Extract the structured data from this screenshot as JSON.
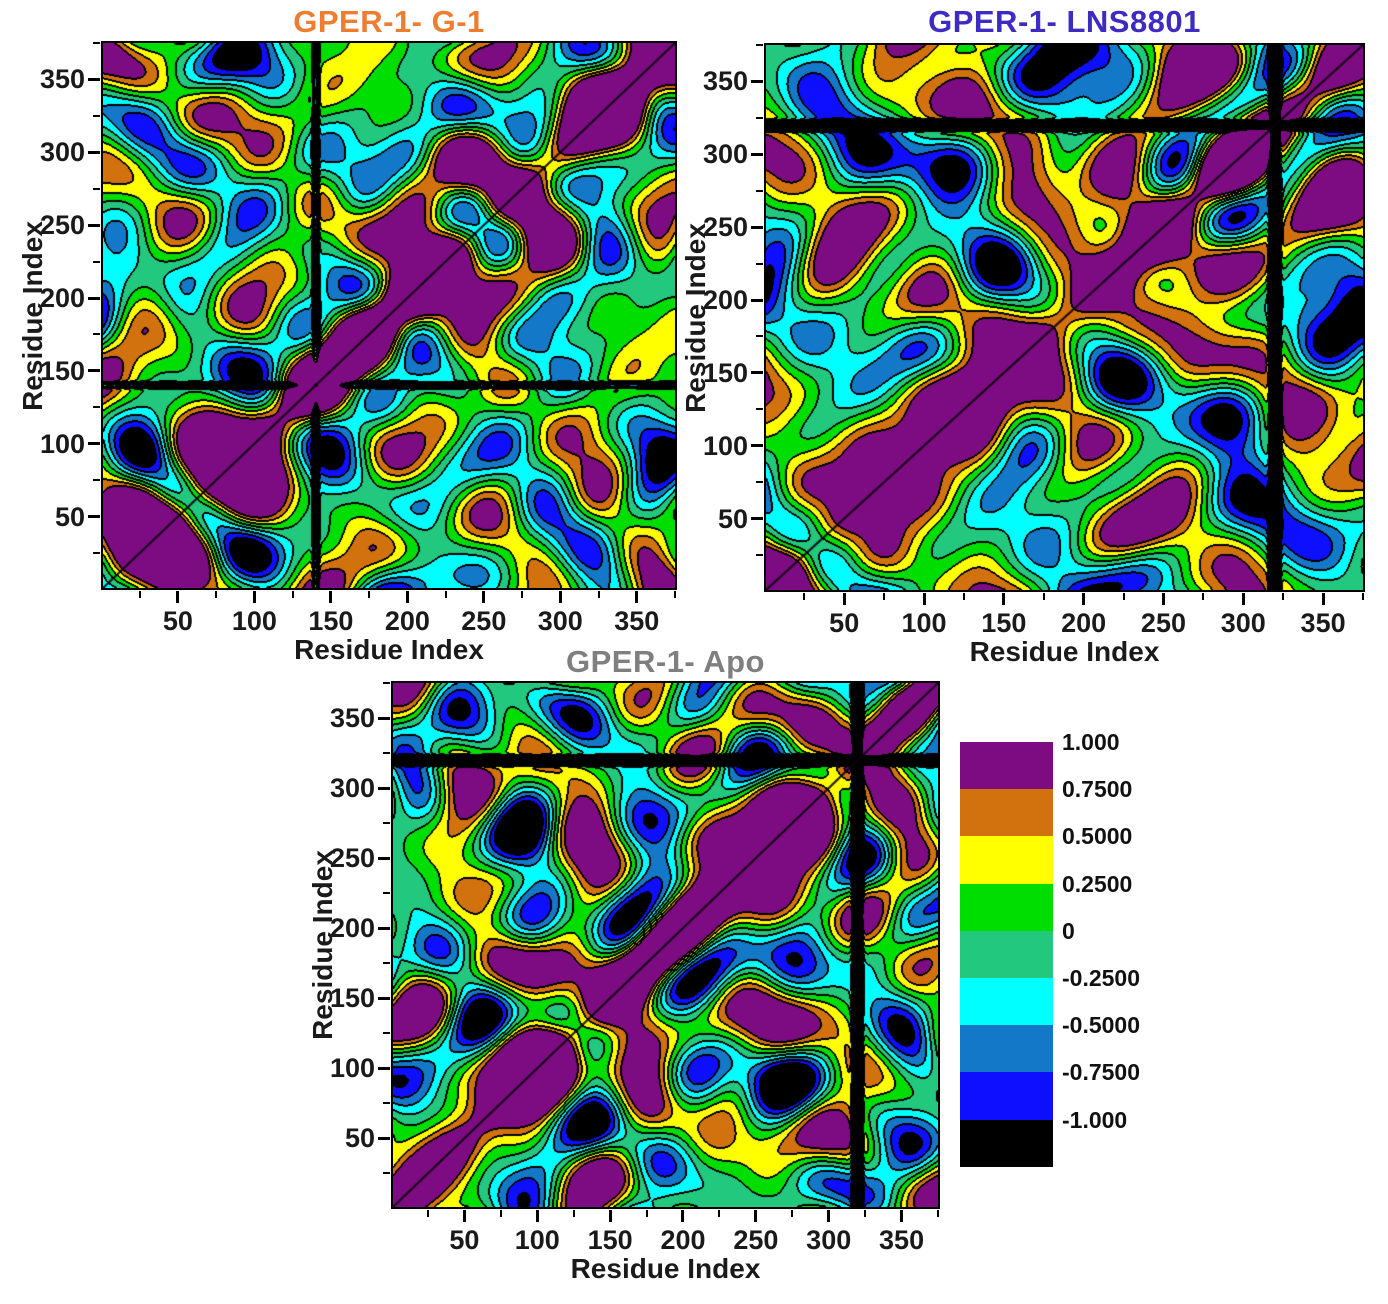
{
  "figure": {
    "axis_label_x": "Residue Index",
    "axis_label_y": "Residue Index",
    "axis_range": [
      1,
      375
    ],
    "x_major_ticks": [
      50,
      100,
      150,
      200,
      250,
      300,
      350
    ],
    "x_minor_ticks": [
      25,
      75,
      125,
      175,
      225,
      275,
      325,
      375
    ],
    "y_major_ticks": [
      50,
      100,
      150,
      200,
      250,
      300,
      350
    ],
    "y_minor_ticks": [
      25,
      75,
      125,
      175,
      225,
      275,
      325,
      375
    ]
  },
  "plots": [
    {
      "title": "GPER-1- G-1",
      "title_color": "#ED7D31"
    },
    {
      "title": "GPER-1- LNS8801",
      "title_color": "#3D2BC2"
    },
    {
      "title": "GPER-1- Apo",
      "title_color": "#7F7F7F"
    }
  ],
  "colorbar": {
    "labels": [
      "1.000",
      "0.7500",
      "0.5000",
      "0.2500",
      "0",
      "-0.2500",
      "-0.5000",
      "-0.7500",
      "-1.000"
    ],
    "colors": [
      "#7D0C82",
      "#D2720E",
      "#FFFF00",
      "#00DD00",
      "#22C87D",
      "#00FFFF",
      "#1478C8",
      "#0F0FFF",
      "#000000"
    ],
    "line_color": "#000000"
  },
  "chart_data": [
    {
      "type": "heatmap",
      "subtype": "filled-contour cross-correlation map (DCCM)",
      "title": "GPER-1- G-1",
      "xlabel": "Residue Index",
      "ylabel": "Residue Index",
      "xlim": [
        1,
        375
      ],
      "ylim": [
        1,
        375
      ],
      "xticks": [
        50,
        100,
        150,
        200,
        250,
        300,
        350
      ],
      "yticks": [
        50,
        100,
        150,
        200,
        250,
        300,
        350
      ],
      "levels": [
        -1.0,
        -0.75,
        -0.5,
        -0.25,
        0,
        0.25,
        0.5,
        0.75,
        1.0
      ],
      "level_colors_high_to_low": [
        "#7D0C82",
        "#D2720E",
        "#FFFF00",
        "#00DD00",
        "#22C87D",
        "#00FFFF",
        "#1478C8",
        "#0F0FFF",
        "#000000"
      ],
      "diagonal_value": 1.0,
      "grid": false,
      "legend_position": "shared colorbar, right of Apo panel"
    },
    {
      "type": "heatmap",
      "subtype": "filled-contour cross-correlation map (DCCM)",
      "title": "GPER-1- LNS8801",
      "xlabel": "Residue Index",
      "ylabel": "Residue Index",
      "xlim": [
        1,
        375
      ],
      "ylim": [
        1,
        375
      ],
      "xticks": [
        50,
        100,
        150,
        200,
        250,
        300,
        350
      ],
      "yticks": [
        50,
        100,
        150,
        200,
        250,
        300,
        350
      ],
      "levels": [
        -1.0,
        -0.75,
        -0.5,
        -0.25,
        0,
        0.25,
        0.5,
        0.75,
        1.0
      ],
      "level_colors_high_to_low": [
        "#7D0C82",
        "#D2720E",
        "#FFFF00",
        "#00DD00",
        "#22C87D",
        "#00FFFF",
        "#1478C8",
        "#0F0FFF",
        "#000000"
      ],
      "diagonal_value": 1.0,
      "narrow_anticorrelated_band_at_residue": 320,
      "grid": false,
      "legend_position": "shared colorbar, right of Apo panel"
    },
    {
      "type": "heatmap",
      "subtype": "filled-contour cross-correlation map (DCCM)",
      "title": "GPER-1- Apo",
      "xlabel": "Residue Index",
      "ylabel": "Residue Index",
      "xlim": [
        1,
        375
      ],
      "ylim": [
        1,
        375
      ],
      "xticks": [
        50,
        100,
        150,
        200,
        250,
        300,
        350
      ],
      "yticks": [
        50,
        100,
        150,
        200,
        250,
        300,
        350
      ],
      "levels": [
        -1.0,
        -0.75,
        -0.5,
        -0.25,
        0,
        0.25,
        0.5,
        0.75,
        1.0
      ],
      "level_colors_high_to_low": [
        "#7D0C82",
        "#D2720E",
        "#FFFF00",
        "#00DD00",
        "#22C87D",
        "#00FFFF",
        "#1478C8",
        "#0F0FFF",
        "#000000"
      ],
      "diagonal_value": 1.0,
      "narrow_anticorrelated_band_at_residue": 320,
      "grid": false,
      "legend_position": "colorbar to the right with labels 1.000 … -1.000 every 0.25"
    }
  ]
}
